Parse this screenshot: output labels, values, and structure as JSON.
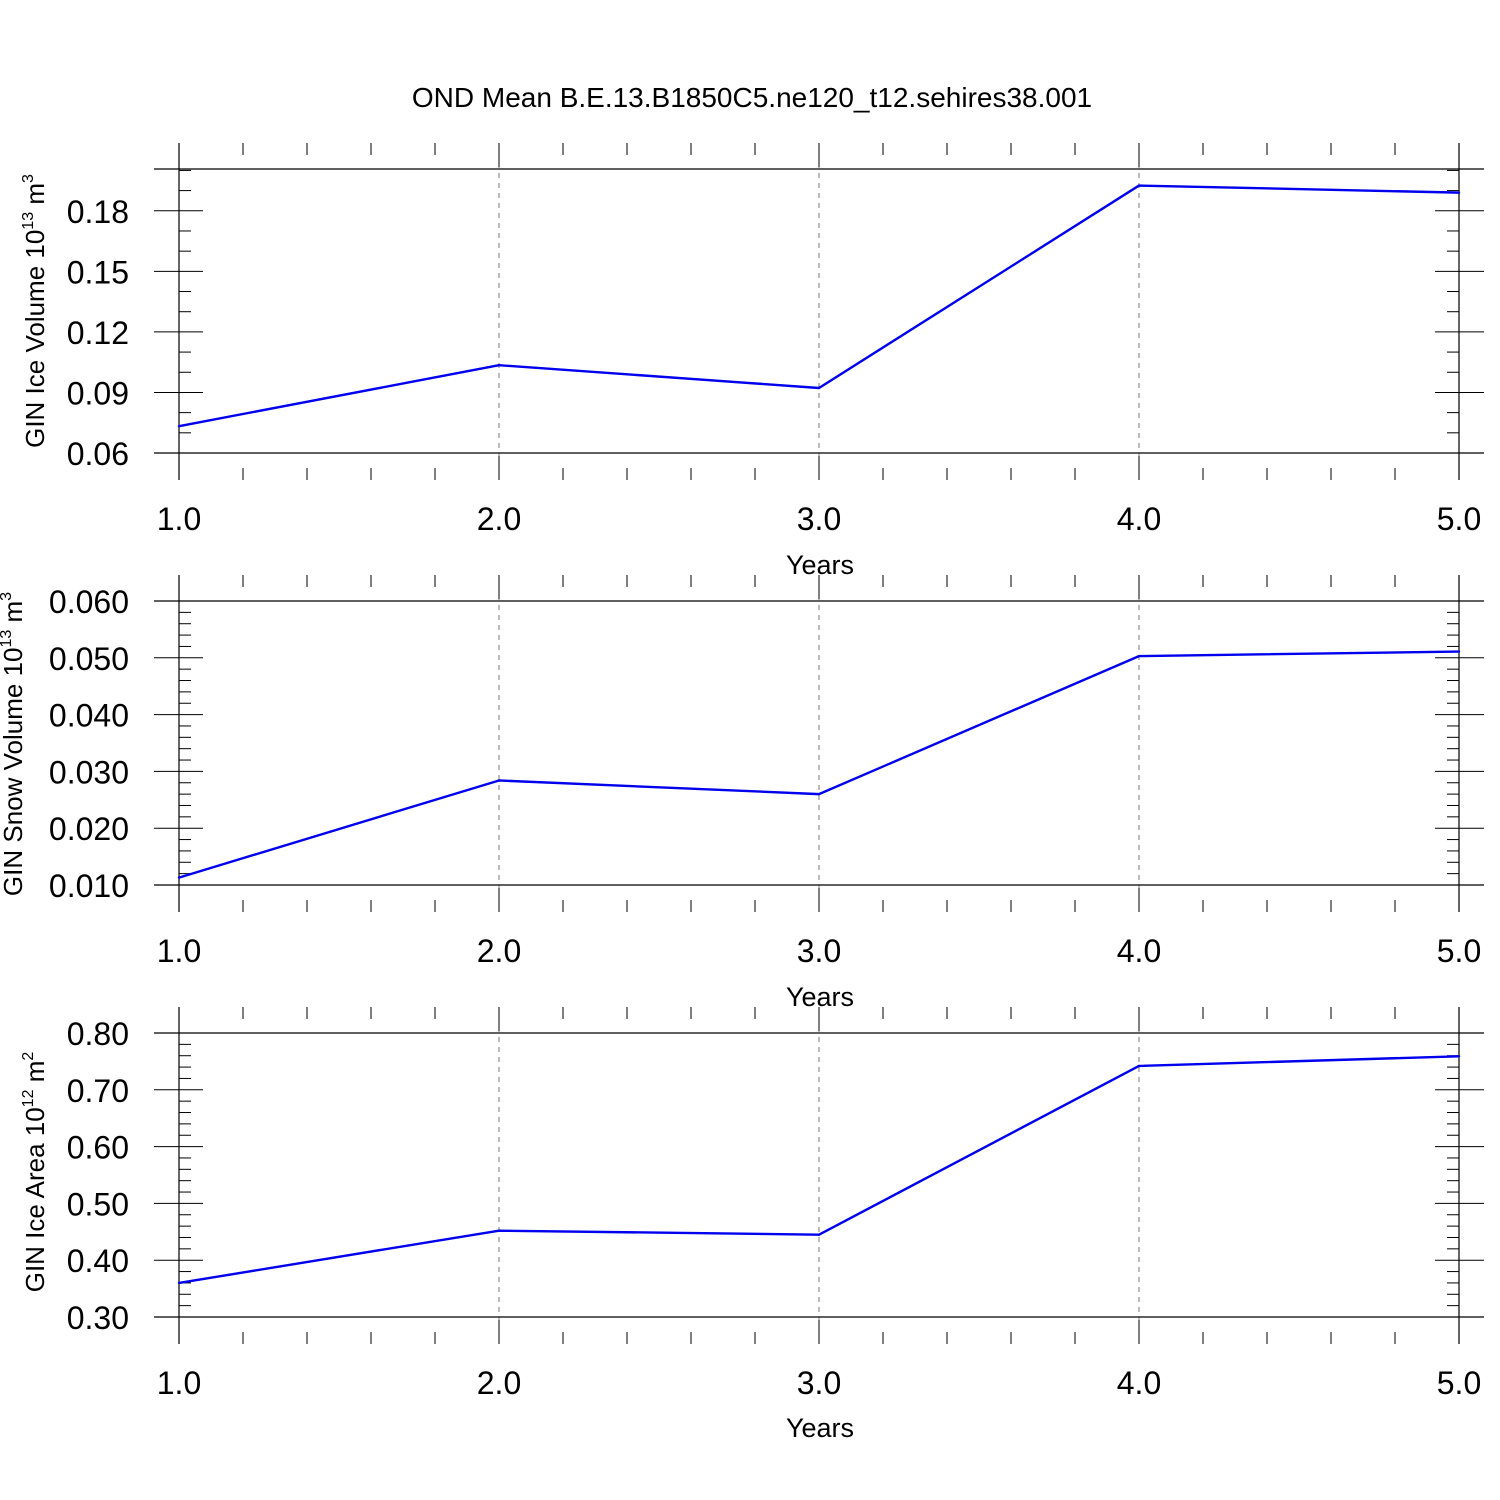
{
  "figure_title": "OND Mean B.E.13.B1850C5.ne120_t12.sehires38.001",
  "colors": {
    "line": "#0000ee",
    "axis": "#000000",
    "grid": "#777777"
  },
  "chart_data": [
    {
      "type": "line",
      "ylabel_main": "GIN Ice Volume 10",
      "ylabel_exp": "13",
      "ylabel_unit": " m",
      "ylabel_unit_exp": "3",
      "xlabel": "Years",
      "x": [
        1,
        2,
        3,
        4,
        5
      ],
      "x_ticks": [
        "1.0",
        "2.0",
        "3.0",
        "4.0",
        "5.0"
      ],
      "xlim": [
        1,
        5
      ],
      "ylim": [
        0.06,
        0.2007
      ],
      "y_ticks": [
        0.06,
        0.09,
        0.12,
        0.15,
        0.18
      ],
      "y_tick_labels": [
        "0.06",
        "0.09",
        "0.12",
        "0.15",
        "0.18"
      ],
      "y_minor_step": 0.01,
      "grid": "vertical dashed",
      "series": [
        {
          "name": "GIN Ice Volume",
          "values": [
            0.0733,
            0.1035,
            0.0922,
            0.1925,
            0.189
          ]
        }
      ]
    },
    {
      "type": "line",
      "ylabel_main": "GIN Snow Volume 10",
      "ylabel_exp": "13",
      "ylabel_unit": " m",
      "ylabel_unit_exp": "3",
      "xlabel": "Years",
      "x": [
        1,
        2,
        3,
        4,
        5
      ],
      "x_ticks": [
        "1.0",
        "2.0",
        "3.0",
        "4.0",
        "5.0"
      ],
      "xlim": [
        1,
        5
      ],
      "ylim": [
        0.01,
        0.06
      ],
      "y_ticks": [
        0.01,
        0.02,
        0.03,
        0.04,
        0.05,
        0.06
      ],
      "y_tick_labels": [
        "0.010",
        "0.020",
        "0.030",
        "0.040",
        "0.050",
        "0.060"
      ],
      "y_minor_step": 0.002,
      "grid": "vertical dashed",
      "series": [
        {
          "name": "GIN Snow Volume",
          "values": [
            0.0113,
            0.0284,
            0.026,
            0.0503,
            0.0511
          ]
        }
      ]
    },
    {
      "type": "line",
      "ylabel_main": "GIN Ice Area 10",
      "ylabel_exp": "12",
      "ylabel_unit": " m",
      "ylabel_unit_exp": "2",
      "xlabel": "Years",
      "x": [
        1,
        2,
        3,
        4,
        5
      ],
      "x_ticks": [
        "1.0",
        "2.0",
        "3.0",
        "4.0",
        "5.0"
      ],
      "xlim": [
        1,
        5
      ],
      "ylim": [
        0.3,
        0.8
      ],
      "y_ticks": [
        0.3,
        0.4,
        0.5,
        0.6,
        0.7,
        0.8
      ],
      "y_tick_labels": [
        "0.30",
        "0.40",
        "0.50",
        "0.60",
        "0.70",
        "0.80"
      ],
      "y_minor_step": 0.02,
      "grid": "vertical dashed",
      "series": [
        {
          "name": "GIN Ice Area",
          "values": [
            0.36,
            0.452,
            0.445,
            0.742,
            0.759
          ]
        }
      ]
    }
  ]
}
